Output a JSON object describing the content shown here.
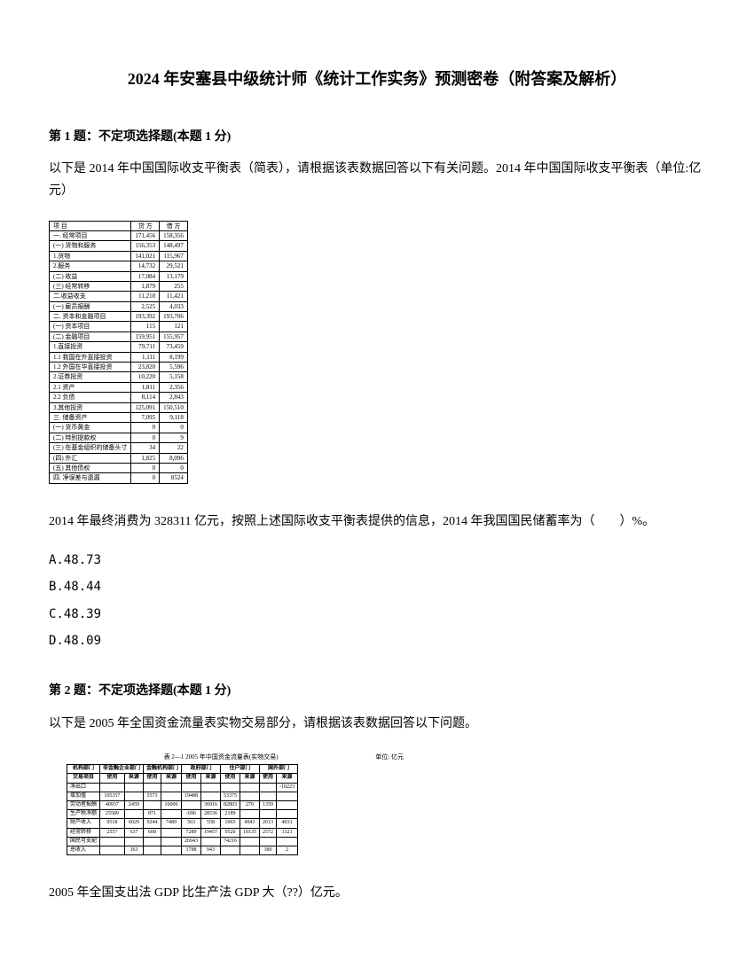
{
  "title": "2024 年安塞县中级统计师《统计工作实务》预测密卷（附答案及解析）",
  "q1": {
    "header": "第 1 题：不定项选择题(本题 1 分)",
    "text": "以下是 2014 年中国国际收支平衡表（简表），请根据该表数据回答以下有关问题。2014 年中国国际收支平衡表（单位:亿元）",
    "table_headers": [
      "项 目",
      "贷 方",
      "借 方"
    ],
    "table_rows": [
      [
        "一. 经常项目",
        "171,456",
        "158,356"
      ],
      [
        "(一) 货物和服务",
        "156,353",
        "148,497"
      ],
      [
        "1.货物",
        "141,021",
        "115,967"
      ],
      [
        "2.服务",
        "14,732",
        "29,521"
      ],
      [
        "(二) 收益",
        "17,084",
        "13,179"
      ],
      [
        "(三) 经常转移",
        "1,879",
        "255"
      ],
      [
        "二.收益收支",
        "11,218",
        "11,421"
      ],
      [
        "(一) 雇员报酬",
        "2,525",
        "4,033"
      ],
      [
        "二. 资本和金融项目",
        "193,392",
        "193,706"
      ],
      [
        "(一) 资本项目",
        "115",
        "121"
      ],
      [
        "(二) 金融项目",
        "159,951",
        "155,957"
      ],
      [
        "1.直接投资",
        "79,711",
        "73,459"
      ],
      [
        "1.1 我国在外直接投资",
        "1,111",
        "8,199"
      ],
      [
        "1.2 外国在华直接投资",
        "23,820",
        "5,596"
      ],
      [
        "2.证券投资",
        "10,220",
        "5,158"
      ],
      [
        "2.1 资产",
        "1,811",
        "2,356"
      ],
      [
        "2.2 负债",
        "8,114",
        "2,843"
      ],
      [
        "3.其他投资",
        "125,091",
        "150,510"
      ],
      [
        "三. 储备资产",
        "7,095",
        "9,118"
      ],
      [
        "(一) 货币黄金",
        "0",
        "0"
      ],
      [
        "(二) 特别提款权",
        "0",
        "9"
      ],
      [
        "(三) 在基金组织的储备头寸",
        "34",
        "22"
      ],
      [
        "(四) 外汇",
        "1,825",
        "8,096"
      ],
      [
        "(五) 其他债权",
        "0",
        "0"
      ],
      [
        "四. 净误差与遗漏",
        "0",
        "8524"
      ]
    ],
    "subquestion": "2014 年最终消费为 328311 亿元，按照上述国际收支平衡表提供的信息，2014 年我国国民储蓄率为（　　）%。",
    "options": [
      "A.48.73",
      "B.48.44",
      "C.48.39",
      "D.48.09"
    ]
  },
  "q2": {
    "header": "第 2 题：不定项选择题(本题 1 分)",
    "text": "以下是 2005 年全国资金流量表实物交易部分，请根据该表数据回答以下问题。",
    "table_title": "表 2—1  2005 年中国资金流量表(实物交易)",
    "table_unit": "单位: 亿元",
    "headers_top": [
      "机构部门",
      "非金融企业部门",
      "金融机构部门",
      "政府部门",
      "住户部门",
      "国外部门"
    ],
    "headers_sub": [
      "交易项目",
      "使用",
      "来源",
      "使用",
      "来源",
      "使用",
      "来源",
      "使用",
      "来源",
      "使用",
      "来源"
    ],
    "rows": [
      [
        "净出口",
        "",
        "",
        "",
        "",
        "",
        "",
        "",
        "",
        "",
        "-10223"
      ],
      [
        "增加值",
        "105357",
        "",
        "5573",
        "",
        "19488",
        "",
        "53375",
        "",
        "",
        ""
      ],
      [
        "劳动者报酬",
        "40937",
        "2459",
        "",
        "16006",
        "",
        "36916",
        "82803",
        "270",
        "1359",
        ""
      ],
      [
        "生产税净额",
        "25589",
        "",
        "871",
        "",
        "-696",
        "28536",
        "2189",
        "",
        "",
        ""
      ],
      [
        "财产收入",
        "9518",
        "6029",
        "9244",
        "7489",
        "563",
        "558",
        "1065",
        "4943",
        "2613",
        "4031"
      ],
      [
        "经常转移",
        "2557",
        "637",
        "608",
        "",
        "7289",
        "19457",
        "9520",
        "10135",
        "2572",
        "1321"
      ],
      [
        "国民可支配",
        "",
        "",
        "",
        "",
        "26943",
        "",
        "74216",
        "",
        "",
        ""
      ],
      [
        "总收入",
        "",
        "363",
        "",
        "",
        "1788",
        "943",
        "",
        "",
        "389",
        "2"
      ]
    ],
    "subquestion": "2005 年全国支出法 GDP 比生产法 GDP 大（??）亿元。"
  }
}
